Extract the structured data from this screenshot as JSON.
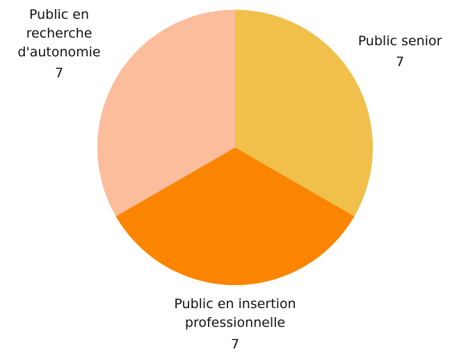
{
  "chart_data": {
    "type": "pie",
    "categories": [
      "Public senior",
      "Public en insertion professionnelle",
      "Public en recherche d'autonomie"
    ],
    "values": [
      7,
      7,
      7
    ],
    "colors": [
      "#f0c04a",
      "#fb8500",
      "#fbbd9c"
    ]
  }
}
